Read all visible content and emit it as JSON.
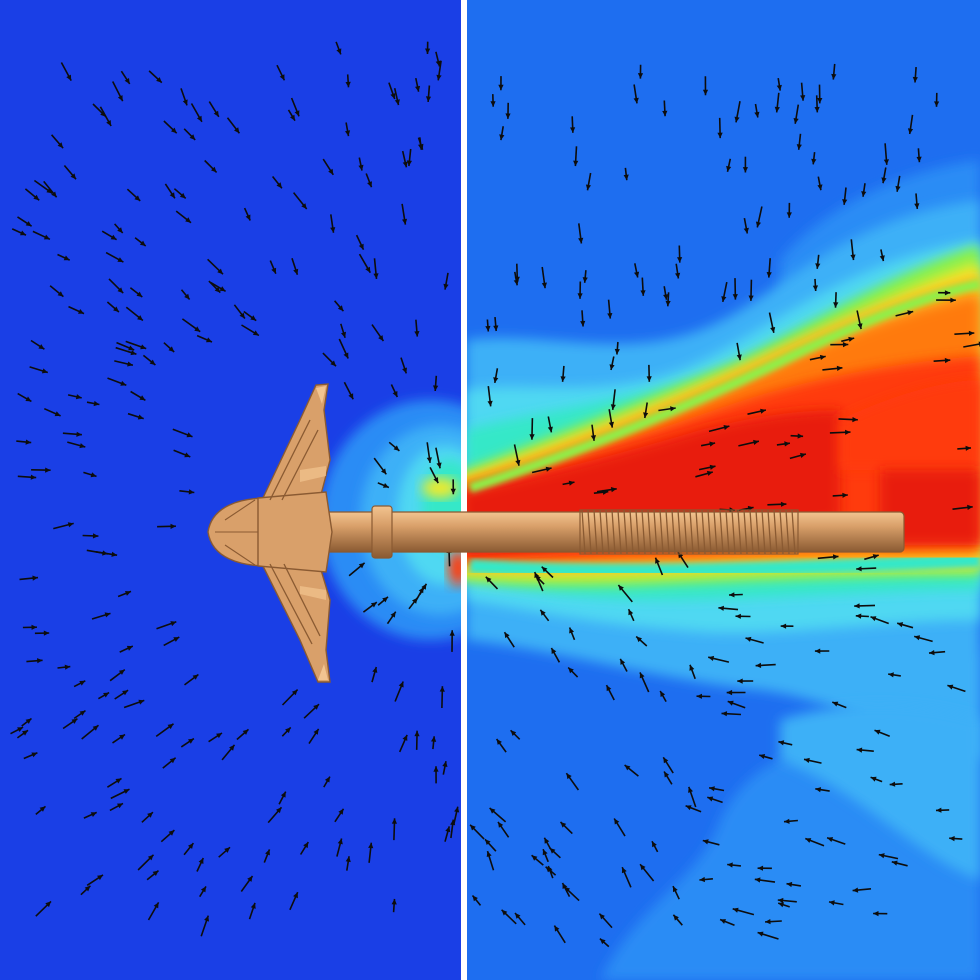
{
  "figure": {
    "kind": "cfd-flow-field-visualization",
    "left_panel": {
      "background": "#1a3fe6"
    },
    "right_panel": {
      "background": "#1e6ef0",
      "contour_colors": [
        "#1e6ef0",
        "#2a8cf5",
        "#3cb0f7",
        "#4fd8f2",
        "#34e8c8",
        "#8ef04a",
        "#f2ea2a",
        "#ffb21e",
        "#ff7a10",
        "#ff3a0a",
        "#e81a08"
      ]
    },
    "divider_color": "#ffffff",
    "arrow_color": "#0d0d0d",
    "tool": {
      "kind": "drill-bit-with-rod",
      "body_color": "#d9a06a",
      "highlight_color": "#f2c490",
      "shadow_color": "#8a5a32"
    }
  }
}
